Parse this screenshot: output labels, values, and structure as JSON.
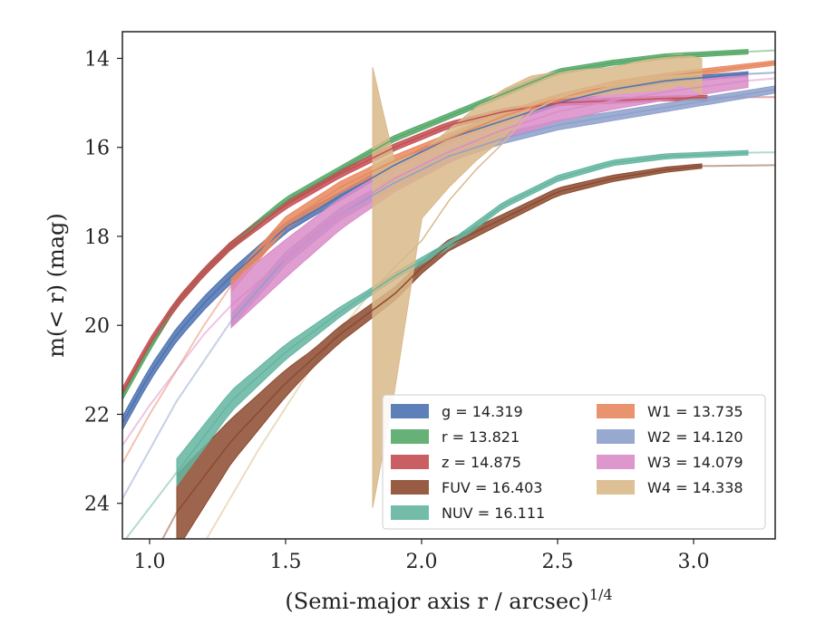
{
  "chart_data": {
    "type": "area",
    "xlabel": "(Semi-major axis r / arcsec)",
    "xlabel_superscript": "1/4",
    "ylabel": "m(< r) (mag)",
    "xlim": [
      0.9,
      3.3
    ],
    "ylim": [
      24.8,
      13.4
    ],
    "y_inverted": true,
    "grid": false,
    "legend_position": "lower-right",
    "x_ticks": [
      "1.0",
      "1.5",
      "2.0",
      "2.5",
      "3.0"
    ],
    "y_ticks": [
      "14",
      "16",
      "18",
      "20",
      "22",
      "24"
    ],
    "series": [
      {
        "name": "g = 14.319",
        "var": "g",
        "value": "14.319",
        "color": "#4c72b0",
        "range": [
          0.9,
          3.2
        ],
        "points": [
          [
            0.9,
            22.2
          ],
          [
            1.0,
            21.1
          ],
          [
            1.1,
            20.2
          ],
          [
            1.2,
            19.5
          ],
          [
            1.3,
            18.9
          ],
          [
            1.5,
            17.8
          ],
          [
            1.7,
            17.1
          ],
          [
            1.9,
            16.4
          ],
          [
            2.1,
            15.8
          ],
          [
            2.3,
            15.4
          ],
          [
            2.5,
            15.0
          ],
          [
            2.7,
            14.7
          ],
          [
            2.9,
            14.5
          ],
          [
            3.2,
            14.35
          ]
        ],
        "band": [
          [
            1.3,
            0.15
          ],
          [
            1.8,
            0.08
          ],
          [
            3.2,
            0.05
          ]
        ],
        "ext": [
          [
            3.2,
            14.35
          ],
          [
            3.3,
            14.32
          ]
        ]
      },
      {
        "name": "r = 13.821",
        "var": "r",
        "value": "13.821",
        "color": "#55a868",
        "range": [
          0.9,
          3.2
        ],
        "points": [
          [
            0.9,
            21.6
          ],
          [
            1.0,
            20.5
          ],
          [
            1.1,
            19.5
          ],
          [
            1.2,
            18.8
          ],
          [
            1.3,
            18.2
          ],
          [
            1.5,
            17.2
          ],
          [
            1.7,
            16.5
          ],
          [
            1.9,
            15.8
          ],
          [
            2.1,
            15.3
          ],
          [
            2.3,
            14.8
          ],
          [
            2.5,
            14.3
          ],
          [
            2.7,
            14.1
          ],
          [
            2.9,
            13.95
          ],
          [
            3.2,
            13.85
          ]
        ],
        "band": [
          [
            0.9,
            0.08
          ],
          [
            3.2,
            0.05
          ]
        ],
        "ext": [
          [
            3.2,
            13.85
          ],
          [
            3.3,
            13.82
          ]
        ]
      },
      {
        "name": "z = 14.875",
        "var": "z",
        "value": "14.875",
        "color": "#c44e52",
        "range": [
          0.9,
          3.05
        ],
        "points": [
          [
            0.9,
            21.5
          ],
          [
            1.0,
            20.4
          ],
          [
            1.1,
            19.5
          ],
          [
            1.2,
            18.8
          ],
          [
            1.3,
            18.2
          ],
          [
            1.5,
            17.3
          ],
          [
            1.7,
            16.6
          ],
          [
            1.9,
            16.0
          ],
          [
            2.1,
            15.5
          ],
          [
            2.3,
            15.2
          ],
          [
            2.5,
            15.0
          ],
          [
            2.7,
            14.95
          ],
          [
            2.9,
            14.9
          ],
          [
            3.05,
            14.88
          ]
        ],
        "band": [
          [
            0.9,
            0.1
          ],
          [
            3.05,
            0.05
          ]
        ],
        "ext": [
          [
            3.05,
            14.88
          ],
          [
            3.3,
            14.87
          ]
        ]
      },
      {
        "name": "FUV = 16.403",
        "var": "FUV",
        "value": "16.403",
        "color": "#8c4a2f",
        "range": [
          1.1,
          3.03
        ],
        "points": [
          [
            1.1,
            24.2
          ],
          [
            1.2,
            23.4
          ],
          [
            1.3,
            22.6
          ],
          [
            1.5,
            21.3
          ],
          [
            1.7,
            20.2
          ],
          [
            1.9,
            19.3
          ],
          [
            2.0,
            18.7
          ],
          [
            2.1,
            18.2
          ],
          [
            2.3,
            17.6
          ],
          [
            2.5,
            17.0
          ],
          [
            2.7,
            16.7
          ],
          [
            2.9,
            16.5
          ],
          [
            3.03,
            16.42
          ]
        ],
        "band": [
          [
            1.1,
            0.85
          ],
          [
            1.3,
            0.5
          ],
          [
            1.6,
            0.2
          ],
          [
            1.9,
            0.15
          ],
          [
            2.3,
            0.1
          ],
          [
            3.03,
            0.05
          ]
        ],
        "ext": [
          [
            0.9,
            26.5
          ],
          [
            1.1,
            24.2
          ]
        ],
        "ext2": [
          [
            3.03,
            16.42
          ],
          [
            3.3,
            16.4
          ]
        ]
      },
      {
        "name": "NUV = 16.111",
        "var": "NUV",
        "value": "16.111",
        "color": "#64b5a0",
        "range": [
          1.1,
          3.2
        ],
        "points": [
          [
            1.1,
            23.3
          ],
          [
            1.2,
            22.5
          ],
          [
            1.3,
            21.7
          ],
          [
            1.5,
            20.6
          ],
          [
            1.7,
            19.7
          ],
          [
            1.9,
            18.9
          ],
          [
            2.1,
            18.2
          ],
          [
            2.3,
            17.3
          ],
          [
            2.5,
            16.7
          ],
          [
            2.7,
            16.35
          ],
          [
            2.9,
            16.2
          ],
          [
            3.2,
            16.12
          ]
        ],
        "band": [
          [
            1.1,
            0.3
          ],
          [
            1.4,
            0.2
          ],
          [
            1.8,
            0.08
          ],
          [
            3.2,
            0.05
          ]
        ],
        "ext": [
          [
            0.9,
            24.9
          ],
          [
            1.1,
            23.3
          ]
        ],
        "ext2": [
          [
            3.2,
            16.12
          ],
          [
            3.3,
            16.11
          ]
        ]
      },
      {
        "name": "W1 = 13.735",
        "var": "W1",
        "value": "13.735",
        "color": "#e8885f",
        "range": [
          1.3,
          3.3
        ],
        "points": [
          [
            1.3,
            19.1
          ],
          [
            1.5,
            17.7
          ],
          [
            1.7,
            16.9
          ],
          [
            1.9,
            16.3
          ],
          [
            2.1,
            15.8
          ],
          [
            2.3,
            15.3
          ],
          [
            2.5,
            14.9
          ],
          [
            2.7,
            14.6
          ],
          [
            2.9,
            14.4
          ],
          [
            3.1,
            14.25
          ],
          [
            3.3,
            14.1
          ]
        ],
        "band": [
          [
            1.3,
            0.15
          ],
          [
            3.3,
            0.05
          ]
        ],
        "ext": [
          [
            0.9,
            23.1
          ],
          [
            1.0,
            22.0
          ],
          [
            1.1,
            21.0
          ],
          [
            1.2,
            20.0
          ],
          [
            1.3,
            19.1
          ]
        ]
      },
      {
        "name": "W2 = 14.120",
        "var": "W2",
        "value": "14.120",
        "color": "#8da0cb",
        "range": [
          1.3,
          3.3
        ],
        "points": [
          [
            1.3,
            19.9
          ],
          [
            1.5,
            18.5
          ],
          [
            1.7,
            17.5
          ],
          [
            1.9,
            16.8
          ],
          [
            2.1,
            16.2
          ],
          [
            2.3,
            15.8
          ],
          [
            2.5,
            15.5
          ],
          [
            2.7,
            15.3
          ],
          [
            2.9,
            15.1
          ],
          [
            3.1,
            14.9
          ],
          [
            3.3,
            14.7
          ]
        ],
        "band": [
          [
            1.3,
            0.15
          ],
          [
            3.3,
            0.08
          ]
        ],
        "ext": [
          [
            0.9,
            23.9
          ],
          [
            1.0,
            22.8
          ],
          [
            1.1,
            21.7
          ],
          [
            1.2,
            20.8
          ],
          [
            1.3,
            19.9
          ]
        ]
      },
      {
        "name": "W3 = 14.079",
        "var": "W3",
        "value": "14.079",
        "color": "#d98cc8",
        "range": [
          1.3,
          3.2
        ],
        "points": [
          [
            1.3,
            19.55
          ],
          [
            1.5,
            18.5
          ],
          [
            1.7,
            17.5
          ],
          [
            1.9,
            16.7
          ],
          [
            2.1,
            16.1
          ],
          [
            2.3,
            15.6
          ],
          [
            2.5,
            15.2
          ],
          [
            2.7,
            14.95
          ],
          [
            2.9,
            14.75
          ],
          [
            3.2,
            14.5
          ]
        ],
        "band": [
          [
            1.3,
            0.5
          ],
          [
            1.7,
            0.35
          ],
          [
            2.1,
            0.25
          ],
          [
            2.7,
            0.2
          ],
          [
            3.2,
            0.15
          ]
        ],
        "ext": [
          [
            0.9,
            22.7
          ],
          [
            1.0,
            21.8
          ],
          [
            1.1,
            21.0
          ],
          [
            1.2,
            20.2
          ],
          [
            1.3,
            19.55
          ]
        ],
        "ext2": [
          [
            3.2,
            14.5
          ],
          [
            3.3,
            14.45
          ]
        ]
      },
      {
        "name": "W4 = 14.338",
        "var": "W4",
        "value": "14.338",
        "color": "#d9b98a",
        "range": [
          1.82,
          3.03
        ],
        "points": [
          [
            1.82,
            19.2
          ],
          [
            1.9,
            18.7
          ],
          [
            2.0,
            18.1
          ],
          [
            2.1,
            17.2
          ],
          [
            2.2,
            16.5
          ],
          [
            2.3,
            15.9
          ],
          [
            2.4,
            15.2
          ],
          [
            2.5,
            14.9
          ],
          [
            2.6,
            14.7
          ],
          [
            2.7,
            14.6
          ],
          [
            2.8,
            14.5
          ],
          [
            2.9,
            14.4
          ],
          [
            3.03,
            14.35
          ]
        ],
        "band_lower": [
          [
            1.82,
            24.1
          ],
          [
            1.9,
            21.5
          ],
          [
            2.0,
            17.6
          ],
          [
            2.1,
            16.9
          ],
          [
            2.2,
            16.3
          ],
          [
            2.3,
            15.8
          ],
          [
            2.4,
            15.1
          ],
          [
            2.5,
            14.9
          ],
          [
            2.7,
            14.8
          ],
          [
            2.9,
            14.7
          ],
          [
            2.95,
            14.6
          ],
          [
            3.03,
            14.8
          ]
        ],
        "band_upper": [
          [
            1.82,
            14.2
          ],
          [
            1.9,
            16.3
          ],
          [
            2.0,
            16.1
          ],
          [
            2.1,
            15.6
          ],
          [
            2.2,
            15.1
          ],
          [
            2.3,
            14.7
          ],
          [
            2.4,
            14.4
          ],
          [
            2.5,
            14.3
          ],
          [
            2.7,
            14.2
          ],
          [
            2.85,
            14.0
          ],
          [
            2.95,
            13.9
          ],
          [
            3.03,
            14.0
          ]
        ],
        "ext": [
          [
            1.2,
            24.9
          ],
          [
            1.4,
            22.8
          ],
          [
            1.6,
            20.9
          ],
          [
            1.82,
            19.2
          ]
        ]
      }
    ]
  }
}
